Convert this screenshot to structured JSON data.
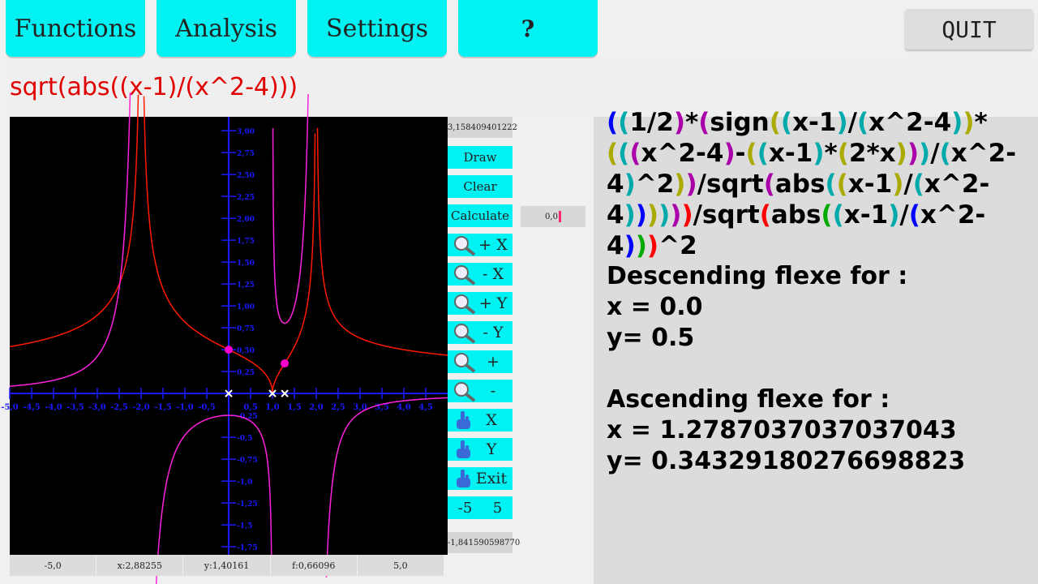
{
  "menu": {
    "functions": "Functions",
    "analysis": "Analysis",
    "settings": "Settings",
    "help": "?",
    "quit": "QUIT"
  },
  "formula": "sqrt(abs((x-1)/(x^2-4)))",
  "sidebar": {
    "y_max": "3,158409401222",
    "draw": "Draw",
    "clear": "Clear",
    "calculate": "Calculate",
    "zoom_plus_x": "+ X",
    "zoom_minus_x": "- X",
    "zoom_plus_y": "+ Y",
    "zoom_minus_y": "- Y",
    "zoom_plus": "+",
    "zoom_minus": "-",
    "move_x": "X",
    "move_y": "Y",
    "exit": "Exit",
    "range_min": "-5",
    "range_max": "5",
    "y_min": "-1,841590598770"
  },
  "calc_input": "0,0",
  "status": {
    "xmin": "-5,0",
    "cursor_x": "x:2,88255",
    "cursor_y": "y:1,40161",
    "f_value": "f:0,66096",
    "xmax": "5,0"
  },
  "derivative": [
    {
      "t": "(",
      "c": "#0000ff"
    },
    {
      "t": "(",
      "c": "#00aaaa"
    },
    {
      "t": "1/2",
      "c": "#000"
    },
    {
      "t": ")",
      "c": "#aa00aa"
    },
    {
      "t": "*",
      "c": "#000"
    },
    {
      "t": "(",
      "c": "#aa00aa"
    },
    {
      "t": "sign",
      "c": "#000"
    },
    {
      "t": "(",
      "c": "#aaaa00"
    },
    {
      "t": "(",
      "c": "#00aaaa"
    },
    {
      "t": "x-1",
      "c": "#000"
    },
    {
      "t": ")",
      "c": "#00aaaa"
    },
    {
      "t": "/",
      "c": "#000"
    },
    {
      "t": "(",
      "c": "#00aaaa"
    },
    {
      "t": "x^2-4",
      "c": "#000"
    },
    {
      "t": ")",
      "c": "#00aaaa"
    },
    {
      "t": ")",
      "c": "#aaaa00"
    },
    {
      "t": "*",
      "c": "#000"
    },
    {
      "t": "(",
      "c": "#aaaa00"
    },
    {
      "t": "(",
      "c": "#00aaaa"
    },
    {
      "t": "(",
      "c": "#aa00aa"
    },
    {
      "t": "x^2-4",
      "c": "#000"
    },
    {
      "t": ")",
      "c": "#aa00aa"
    },
    {
      "t": "-",
      "c": "#000"
    },
    {
      "t": "(",
      "c": "#aaaa00"
    },
    {
      "t": "(",
      "c": "#00aaaa"
    },
    {
      "t": "x-1",
      "c": "#000"
    },
    {
      "t": ")",
      "c": "#00aaaa"
    },
    {
      "t": "*",
      "c": "#000"
    },
    {
      "t": "(",
      "c": "#aaaa00"
    },
    {
      "t": "2*x",
      "c": "#000"
    },
    {
      "t": ")",
      "c": "#aaaa00"
    },
    {
      "t": ")",
      "c": "#aa00aa"
    },
    {
      "t": ")",
      "c": "#00aaaa"
    },
    {
      "t": "/",
      "c": "#000"
    },
    {
      "t": "(",
      "c": "#00aaaa"
    },
    {
      "t": "x^2-4",
      "c": "#000"
    },
    {
      "t": ")",
      "c": "#00aaaa"
    },
    {
      "t": "^2",
      "c": "#000"
    },
    {
      "t": ")",
      "c": "#aaaa00"
    },
    {
      "t": ")",
      "c": "#aa00aa"
    },
    {
      "t": "/sqrt",
      "c": "#000"
    },
    {
      "t": "(",
      "c": "#aa00aa"
    },
    {
      "t": "abs",
      "c": "#000"
    },
    {
      "t": "(",
      "c": "#00aaaa"
    },
    {
      "t": "(",
      "c": "#aaaa00"
    },
    {
      "t": "x-1",
      "c": "#000"
    },
    {
      "t": ")",
      "c": "#aaaa00"
    },
    {
      "t": "/",
      "c": "#000"
    },
    {
      "t": "(",
      "c": "#00aaaa"
    },
    {
      "t": "x^2-",
      "c": "#000"
    },
    {
      "t": "4",
      "c": "#000"
    },
    {
      "t": ")",
      "c": "#00aaaa"
    },
    {
      "t": ")",
      "c": "#0000ff"
    },
    {
      "t": ")",
      "c": "#aaaa00"
    },
    {
      "t": ")",
      "c": "#00aaaa"
    },
    {
      "t": ")",
      "c": "#aa00aa"
    },
    {
      "t": ")",
      "c": "#ff0000"
    },
    {
      "t": "/sqrt",
      "c": "#000"
    },
    {
      "t": "(",
      "c": "#ff0000"
    },
    {
      "t": "abs",
      "c": "#000"
    },
    {
      "t": "(",
      "c": "#00aa00"
    },
    {
      "t": "(",
      "c": "#00aaaa"
    },
    {
      "t": "x-1",
      "c": "#000"
    },
    {
      "t": ")",
      "c": "#00aaaa"
    },
    {
      "t": "/",
      "c": "#000"
    },
    {
      "t": "(",
      "c": "#0000ff"
    },
    {
      "t": "x^2-4",
      "c": "#000"
    },
    {
      "t": ")",
      "c": "#0000ff"
    },
    {
      "t": ")",
      "c": "#00aa00"
    },
    {
      "t": ")",
      "c": "#ff0000"
    },
    {
      "t": "^2",
      "c": "#000"
    }
  ],
  "results": {
    "descending_title": "Descending flexe for :",
    "descending_x": "x = 0.0",
    "descending_y": "y= 0.5",
    "ascending_title": "Ascending flexe for :",
    "ascending_x": "x = 1.2787037037037043",
    "ascending_y": "y= 0.34329180276698823"
  },
  "graph": {
    "function_color": "#ff1a00",
    "derivative_color": "#ff22dd",
    "axis_color": "#1a1aff",
    "x_ticks": [
      "-5,0",
      "-4,5",
      "-4,0",
      "-3,5",
      "-3,0",
      "-2,5",
      "-2,0",
      "-1,5",
      "-1,0",
      "-0,5",
      "0,5",
      "1,0",
      "1,5",
      "2,0",
      "2,5",
      "3,0",
      "3,5",
      "4,0",
      "4,5"
    ],
    "y_ticks_pos": [
      "3,00",
      "2,75",
      "2,50",
      "2,25",
      "2,00",
      "1,75",
      "1,50",
      "1,25",
      "1,00",
      "0,75",
      "0,50",
      "0,25"
    ],
    "y_ticks_neg": [
      "-0,25",
      "-0,5",
      "-0,75",
      "-1,0",
      "-1,25",
      "-1,5",
      "-1,75"
    ],
    "flex_points": [
      {
        "x": 0.0,
        "y": 0.5
      },
      {
        "x": 1.2787,
        "y": 0.3433
      }
    ],
    "root_marks": [
      0.0,
      1.0,
      1.28
    ]
  }
}
